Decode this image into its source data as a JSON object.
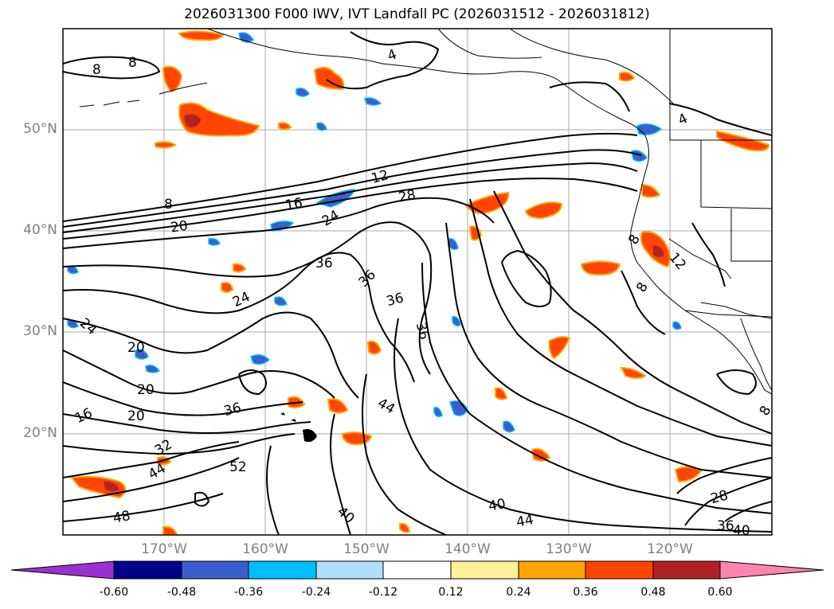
{
  "title": "2026031300 F000 IWV, IVT Landfall PC (2026031512 - 2026031812)",
  "map": {
    "region": "northeast-pacific",
    "lat_ticks": [
      "50°N",
      "40°N",
      "30°N",
      "20°N"
    ],
    "lon_ticks": [
      "170°W",
      "160°W",
      "150°W",
      "140°W",
      "130°W",
      "120°W"
    ],
    "contour_labels": [
      {
        "text": "8"
      },
      {
        "text": "8"
      },
      {
        "text": "4"
      },
      {
        "text": "4"
      },
      {
        "text": "12"
      },
      {
        "text": "16"
      },
      {
        "text": "8"
      },
      {
        "text": "20"
      },
      {
        "text": "24"
      },
      {
        "text": "28"
      },
      {
        "text": "36"
      },
      {
        "text": "36"
      },
      {
        "text": "36"
      },
      {
        "text": "36"
      },
      {
        "text": "24"
      },
      {
        "text": "24"
      },
      {
        "text": "20"
      },
      {
        "text": "20"
      },
      {
        "text": "16"
      },
      {
        "text": "20"
      },
      {
        "text": "36"
      },
      {
        "text": "44"
      },
      {
        "text": "32"
      },
      {
        "text": "44"
      },
      {
        "text": "52"
      },
      {
        "text": "48"
      },
      {
        "text": "40"
      },
      {
        "text": "40"
      },
      {
        "text": "44"
      },
      {
        "text": "28"
      },
      {
        "text": "36"
      },
      {
        "text": "40"
      },
      {
        "text": "12"
      },
      {
        "text": "8"
      },
      {
        "text": "8"
      },
      {
        "text": "8"
      }
    ]
  },
  "colorbar": {
    "colors": [
      "#9b30d0",
      "#00008b",
      "#3a5fcd",
      "#00bfff",
      "#b0e0f8",
      "#ffffff",
      "#fff09a",
      "#ffa500",
      "#ff4500",
      "#b22222",
      "#ff85b0"
    ],
    "labels": [
      "-0.60",
      "-0.48",
      "-0.36",
      "-0.24",
      "-0.12",
      "0.12",
      "0.24",
      "0.36",
      "0.48",
      "0.60"
    ]
  }
}
